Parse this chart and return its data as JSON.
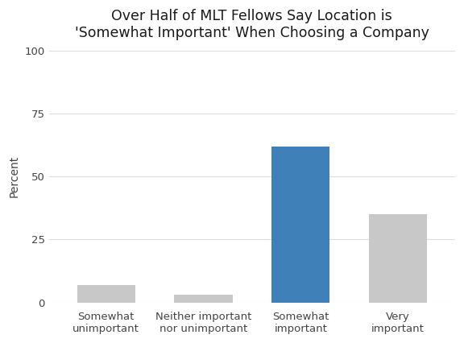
{
  "categories": [
    "Somewhat\nunimportant",
    "Neither important\nnor unimportant",
    "Somewhat\nimportant",
    "Very\nimportant"
  ],
  "values": [
    7,
    3,
    62,
    35
  ],
  "bar_colors": [
    "#c8c8c8",
    "#c8c8c8",
    "#4080b8",
    "#c8c8c8"
  ],
  "title": "Over Half of MLT Fellows Say Location is\n'Somewhat Important' When Choosing a Company",
  "ylabel": "Percent",
  "ylim": [
    0,
    100
  ],
  "yticks": [
    0,
    25,
    50,
    75,
    100
  ],
  "title_fontsize": 12.5,
  "ylabel_fontsize": 10,
  "tick_fontsize": 9.5,
  "background_color": "#ffffff",
  "grid_color": "#dddddd",
  "bar_width": 0.6
}
